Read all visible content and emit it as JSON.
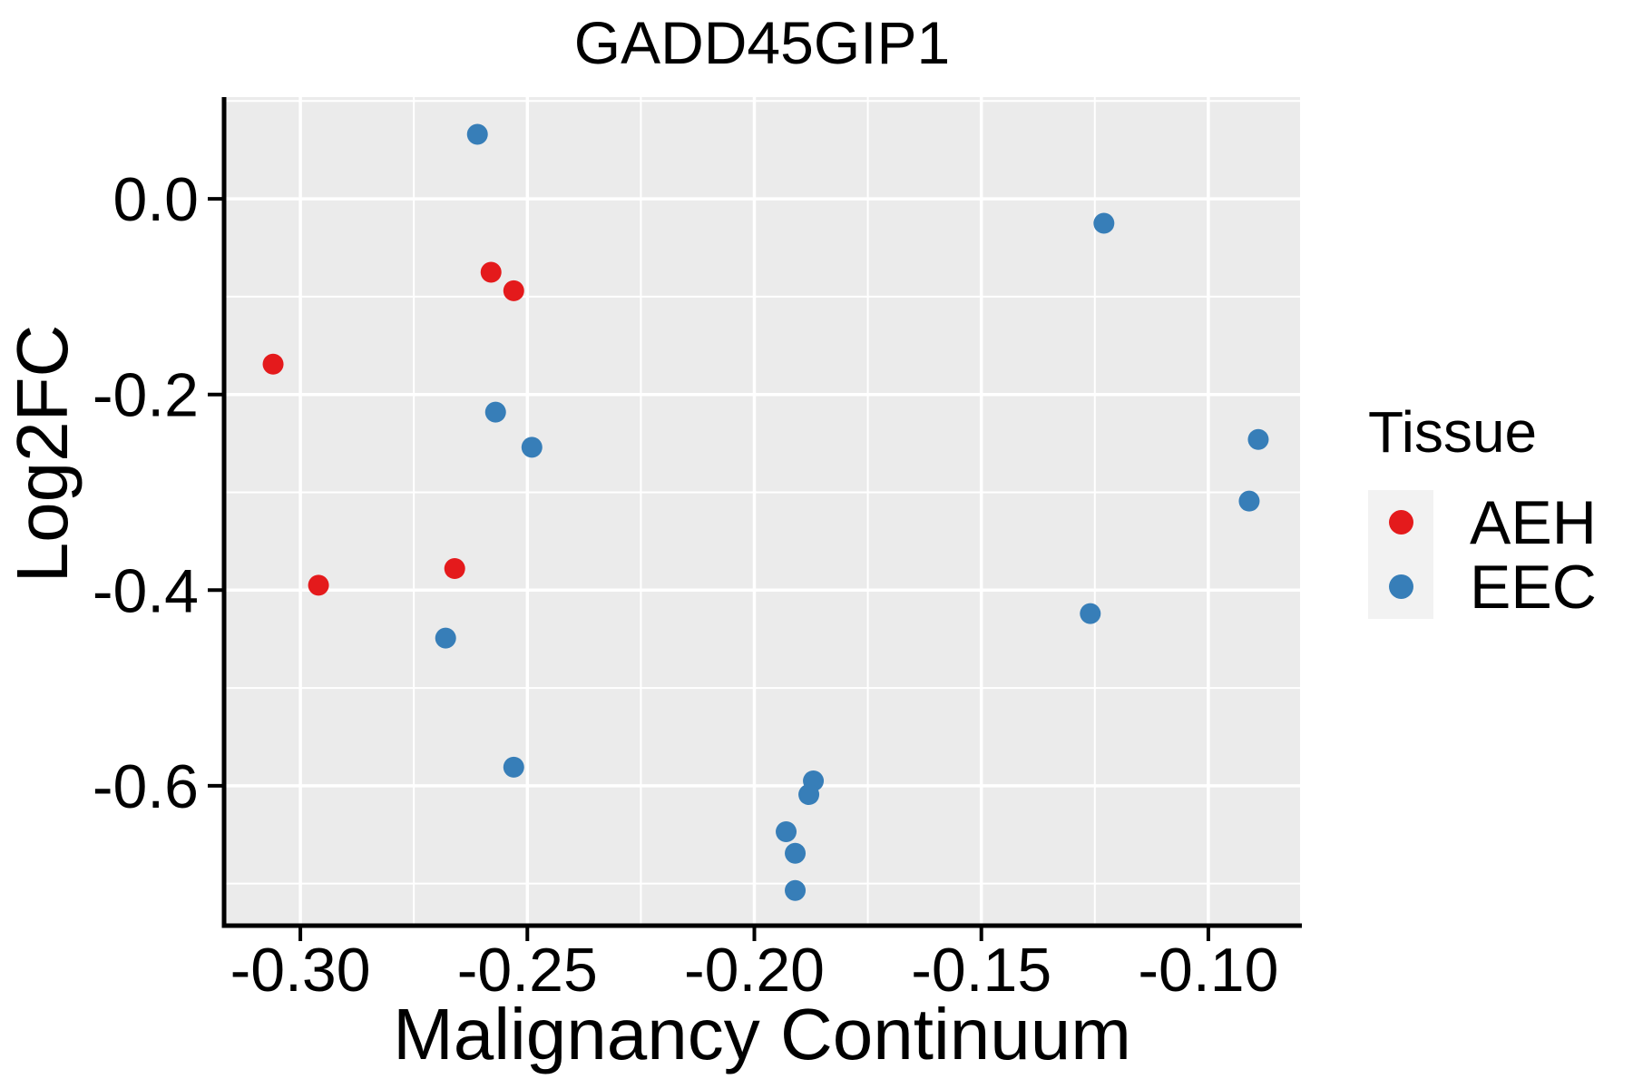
{
  "figure": {
    "background": "#ffffff"
  },
  "chart_data": {
    "type": "scatter",
    "title": "GADD45GIP1",
    "xlabel": "Malignancy Continuum",
    "ylabel": "Log2FC",
    "xlim": [
      -0.3168,
      -0.0798
    ],
    "ylim": [
      -0.743,
      0.104
    ],
    "x_major_ticks": [
      -0.3,
      -0.25,
      -0.2,
      -0.15,
      -0.1
    ],
    "x_tick_labels": [
      "-0.30",
      "-0.25",
      "-0.20",
      "-0.15",
      "-0.10"
    ],
    "x_minor_ticks": [
      -0.275,
      -0.225,
      -0.175,
      -0.125
    ],
    "y_major_ticks": [
      0.0,
      -0.2,
      -0.4,
      -0.6
    ],
    "y_tick_labels": [
      "0.0",
      "-0.2",
      "-0.4",
      "-0.6"
    ],
    "y_minor_ticks": [
      0.1,
      -0.1,
      -0.3,
      -0.5,
      -0.7
    ],
    "grid": true,
    "panel_background": "#ebebeb",
    "grid_color": "#ffffff",
    "axis_color": "#000000",
    "point_radius": 11.5,
    "legend_position": "right",
    "legend_title": "Tissue",
    "series": [
      {
        "name": "AEH",
        "color": "#e41a1c",
        "points": [
          [
            -0.306,
            -0.169
          ],
          [
            -0.296,
            -0.395
          ],
          [
            -0.266,
            -0.378
          ],
          [
            -0.258,
            -0.075
          ],
          [
            -0.253,
            -0.094
          ]
        ]
      },
      {
        "name": "EEC",
        "color": "#377eb8",
        "points": [
          [
            -0.261,
            0.066
          ],
          [
            -0.257,
            -0.218
          ],
          [
            -0.249,
            -0.254
          ],
          [
            -0.268,
            -0.449
          ],
          [
            -0.253,
            -0.581
          ],
          [
            -0.187,
            -0.595
          ],
          [
            -0.188,
            -0.609
          ],
          [
            -0.193,
            -0.647
          ],
          [
            -0.191,
            -0.669
          ],
          [
            -0.191,
            -0.707
          ],
          [
            -0.123,
            -0.025
          ],
          [
            -0.126,
            -0.424
          ],
          [
            -0.091,
            -0.309
          ],
          [
            -0.089,
            -0.246
          ]
        ]
      }
    ]
  },
  "legend": {
    "title": "Tissue",
    "key_background": "#f2f2f2",
    "items": [
      {
        "label": "AEH",
        "color": "#e41a1c"
      },
      {
        "label": "EEC",
        "color": "#377eb8"
      }
    ]
  }
}
